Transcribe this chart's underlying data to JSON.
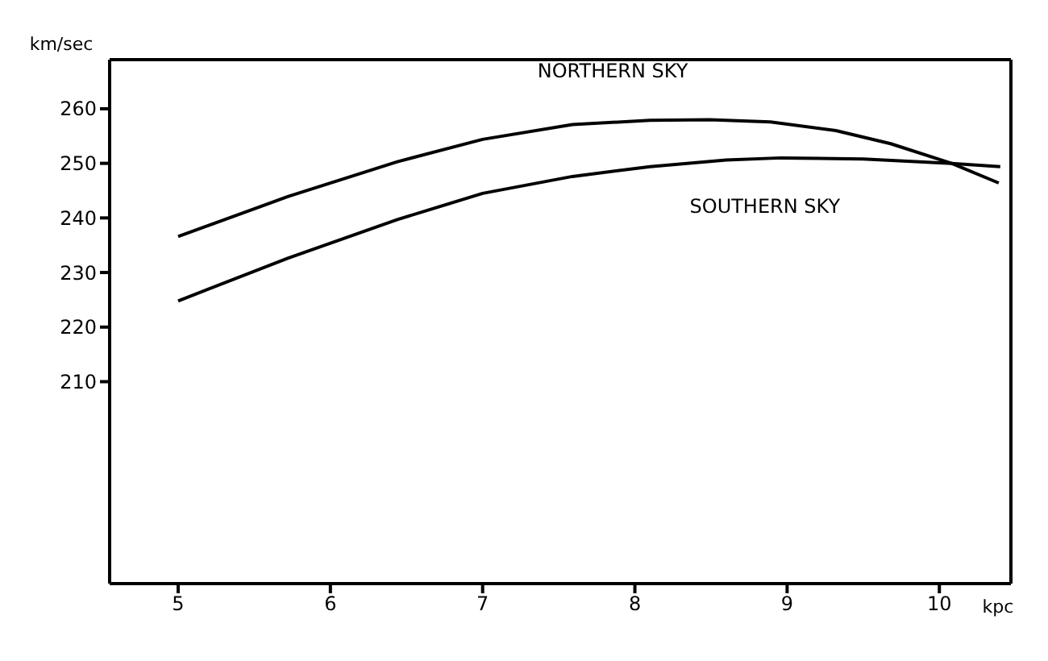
{
  "chart_data": {
    "type": "line",
    "xlabel": "kpc",
    "ylabel": "km/sec",
    "x": [
      5,
      5.72,
      6.44,
      7.0,
      7.59,
      8.1,
      8.49,
      8.89,
      9.32,
      9.68,
      10.08,
      10.39
    ],
    "series": [
      {
        "name": "NORTHERN SKY",
        "color": "#000000",
        "values": [
          236.6,
          243.9,
          250.3,
          254.4,
          257.1,
          257.9,
          258.0,
          257.6,
          256.0,
          253.6,
          250.0,
          246.4
        ]
      },
      {
        "name": "SOUTHERN SKY",
        "color": "#000000",
        "x": [
          5,
          5.72,
          6.44,
          7.0,
          7.59,
          8.1,
          8.6,
          8.96,
          9.5,
          10.08,
          10.4
        ],
        "values": [
          224.8,
          232.6,
          239.7,
          244.5,
          247.6,
          249.4,
          250.6,
          251.0,
          250.8,
          250.0,
          249.4
        ]
      }
    ],
    "xlim": [
      4.55,
      10.47
    ],
    "xticks": [
      5,
      6,
      7,
      8,
      9,
      10
    ],
    "ylim": [
      173,
      269
    ],
    "yticks": [
      210,
      220,
      230,
      240,
      250,
      260
    ],
    "grid": false,
    "legend": false,
    "marker": "none",
    "line_style": "solid"
  }
}
